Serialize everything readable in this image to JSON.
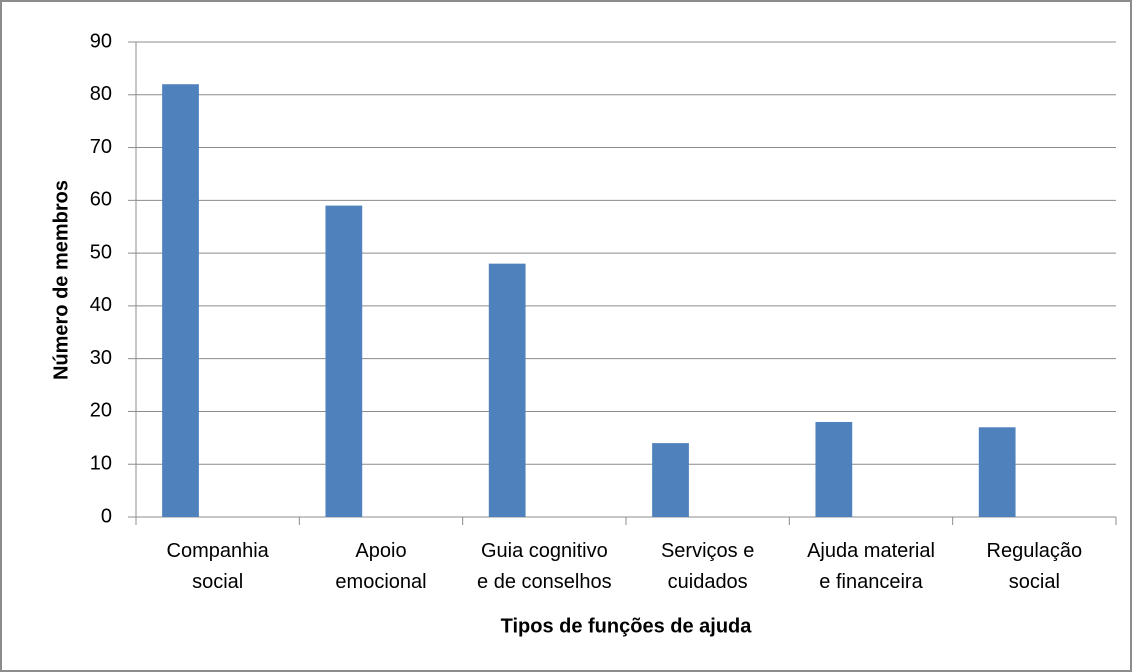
{
  "chart_data": {
    "type": "bar",
    "x_label": "Tipos de funções de ajuda",
    "y_label": "Número de membros",
    "categories": [
      "Companhia\nsocial",
      "Apoio\nemocional",
      "Guia cognitivo\ne de conselhos",
      "Serviços e\ncuidados",
      "Ajuda material\ne financeira",
      "Regulação\nsocial"
    ],
    "values": [
      82,
      59,
      48,
      14,
      18,
      17
    ],
    "color": "#4f81bd",
    "ylim": [
      0,
      90
    ],
    "yticks": [
      0,
      10,
      20,
      30,
      40,
      50,
      60,
      70,
      80,
      90
    ],
    "grid": true
  }
}
